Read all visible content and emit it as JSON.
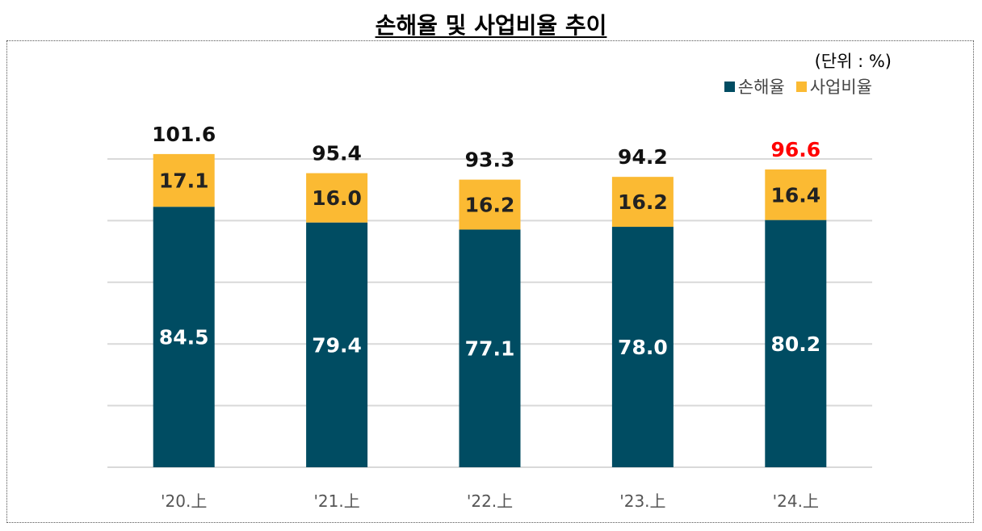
{
  "title": "손해율 및 사업비율 추이",
  "unit": "(단위 : %)",
  "chart_data": {
    "type": "bar",
    "stacked": true,
    "categories": [
      "'20.上",
      "'21.上",
      "'22.上",
      "'23.上",
      "'24.上"
    ],
    "series": [
      {
        "name": "손해율",
        "color": "#004C62",
        "values": [
          84.5,
          79.4,
          77.1,
          78.0,
          80.2
        ],
        "labels": [
          "84.5",
          "79.4",
          "77.1",
          "78.0",
          "80.2"
        ]
      },
      {
        "name": "사업비율",
        "color": "#FBBA33",
        "values": [
          17.1,
          16.0,
          16.2,
          16.2,
          16.4
        ],
        "labels": [
          "17.1",
          "16.0",
          "16.2",
          "16.2",
          "16.4"
        ]
      }
    ],
    "totals": [
      101.6,
      95.4,
      93.3,
      94.2,
      96.6
    ],
    "total_labels": [
      "101.6",
      "95.4",
      "93.3",
      "94.2",
      "96.6"
    ],
    "highlight_total_color": "#FF0000",
    "highlight_index": 4,
    "ylim": [
      0,
      100
    ],
    "grid": true,
    "legend_position": "top-right"
  }
}
